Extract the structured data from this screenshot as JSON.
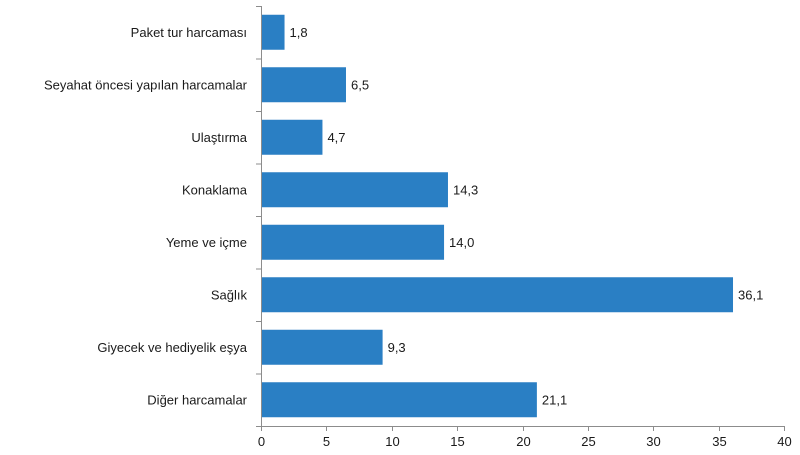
{
  "chart_data": {
    "type": "bar",
    "orientation": "horizontal",
    "categories": [
      "Paket tur harcaması",
      "Seyahat öncesi yapılan harcamalar",
      "Ulaştırma",
      "Konaklama",
      "Yeme ve içme",
      "Sağlık",
      "Giyecek ve hediyelik eşya",
      "Diğer harcamalar"
    ],
    "values": [
      1.8,
      6.5,
      4.7,
      14.3,
      14.0,
      36.1,
      9.3,
      21.1
    ],
    "value_labels": [
      "1,8",
      "6,5",
      "4,7",
      "14,3",
      "14,0",
      "36,1",
      "9,3",
      "21,1"
    ],
    "xlim": [
      0,
      40
    ],
    "xticks": [
      0,
      5,
      10,
      15,
      20,
      25,
      30,
      35,
      40
    ],
    "grid": false,
    "legend": "none",
    "bar_color": "#2a7fc4"
  }
}
